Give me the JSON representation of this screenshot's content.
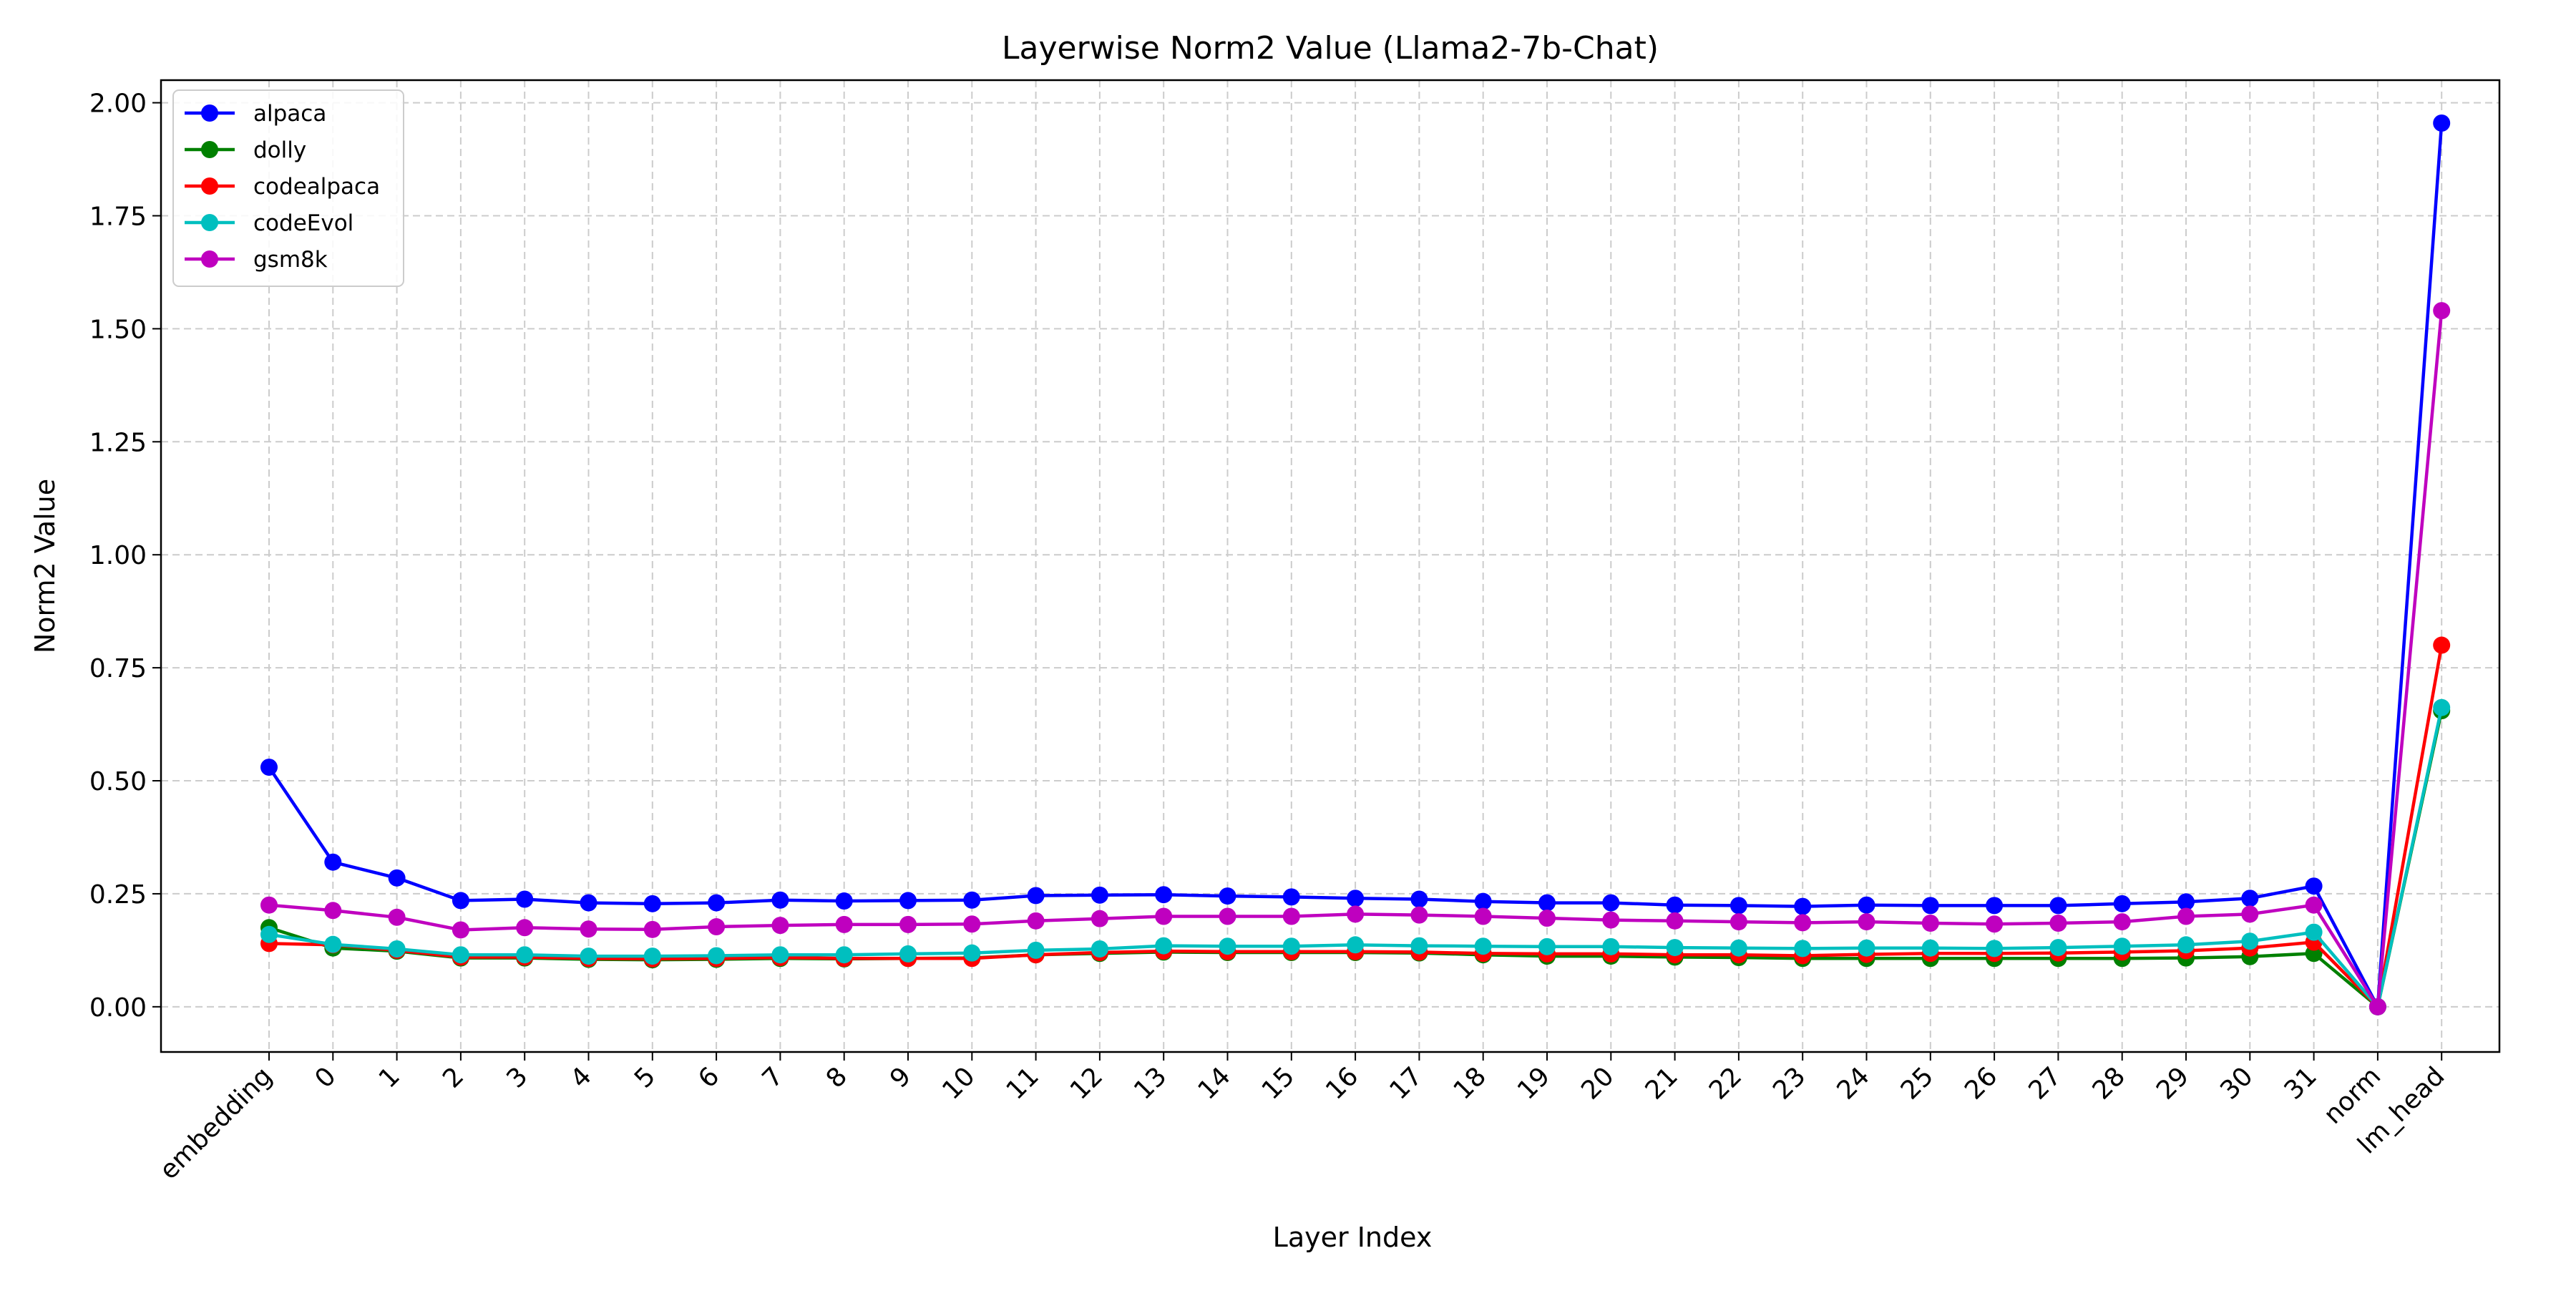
{
  "chart_data": {
    "type": "line",
    "title": "Layerwise Norm2 Value (Llama2-7b-Chat)",
    "xlabel": "Layer Index",
    "ylabel": "Norm2 Value",
    "ylim": [
      -0.1,
      2.05
    ],
    "yticks": [
      0.0,
      0.25,
      0.5,
      0.75,
      1.0,
      1.25,
      1.5,
      1.75,
      2.0
    ],
    "ytick_labels": [
      "0.00",
      "0.25",
      "0.50",
      "0.75",
      "1.00",
      "1.25",
      "1.50",
      "1.75",
      "2.00"
    ],
    "grid": true,
    "legend_position": "top-left",
    "categories": [
      "embedding",
      "0",
      "1",
      "2",
      "3",
      "4",
      "5",
      "6",
      "7",
      "8",
      "9",
      "10",
      "11",
      "12",
      "13",
      "14",
      "15",
      "16",
      "17",
      "18",
      "19",
      "20",
      "21",
      "22",
      "23",
      "24",
      "25",
      "26",
      "27",
      "28",
      "29",
      "30",
      "31",
      "norm",
      "lm_head"
    ],
    "series": [
      {
        "name": "alpaca",
        "color": "#0000ff",
        "values": [
          0.53,
          0.32,
          0.285,
          0.235,
          0.238,
          0.23,
          0.228,
          0.23,
          0.236,
          0.234,
          0.235,
          0.236,
          0.246,
          0.247,
          0.248,
          0.245,
          0.243,
          0.24,
          0.238,
          0.233,
          0.23,
          0.23,
          0.225,
          0.224,
          0.222,
          0.225,
          0.224,
          0.224,
          0.224,
          0.228,
          0.232,
          0.24,
          0.267,
          0.0,
          1.955
        ]
      },
      {
        "name": "dolly",
        "color": "#008000",
        "values": [
          0.175,
          0.13,
          0.123,
          0.108,
          0.108,
          0.105,
          0.104,
          0.105,
          0.107,
          0.106,
          0.107,
          0.108,
          0.115,
          0.118,
          0.121,
          0.12,
          0.12,
          0.12,
          0.119,
          0.115,
          0.112,
          0.112,
          0.11,
          0.109,
          0.107,
          0.107,
          0.107,
          0.107,
          0.107,
          0.107,
          0.108,
          0.111,
          0.118,
          0.0,
          0.655
        ]
      },
      {
        "name": "codealpaca",
        "color": "#ff0000",
        "values": [
          0.14,
          0.137,
          0.125,
          0.11,
          0.11,
          0.107,
          0.106,
          0.107,
          0.109,
          0.107,
          0.107,
          0.107,
          0.115,
          0.12,
          0.123,
          0.122,
          0.122,
          0.122,
          0.121,
          0.118,
          0.117,
          0.117,
          0.115,
          0.115,
          0.113,
          0.116,
          0.118,
          0.118,
          0.119,
          0.121,
          0.124,
          0.13,
          0.143,
          0.0,
          0.8
        ]
      },
      {
        "name": "codeEvol",
        "color": "#00bfbf",
        "values": [
          0.16,
          0.138,
          0.128,
          0.115,
          0.115,
          0.112,
          0.112,
          0.113,
          0.115,
          0.115,
          0.117,
          0.119,
          0.125,
          0.128,
          0.135,
          0.134,
          0.134,
          0.137,
          0.135,
          0.134,
          0.133,
          0.133,
          0.131,
          0.13,
          0.129,
          0.13,
          0.13,
          0.129,
          0.131,
          0.134,
          0.137,
          0.145,
          0.165,
          0.0,
          0.662
        ]
      },
      {
        "name": "gsm8k",
        "color": "#bf00bf",
        "values": [
          0.225,
          0.213,
          0.198,
          0.17,
          0.175,
          0.172,
          0.171,
          0.177,
          0.18,
          0.182,
          0.182,
          0.183,
          0.19,
          0.195,
          0.2,
          0.2,
          0.2,
          0.205,
          0.203,
          0.2,
          0.196,
          0.192,
          0.19,
          0.188,
          0.186,
          0.188,
          0.185,
          0.183,
          0.185,
          0.188,
          0.2,
          0.205,
          0.225,
          0.0,
          1.54
        ]
      }
    ]
  }
}
